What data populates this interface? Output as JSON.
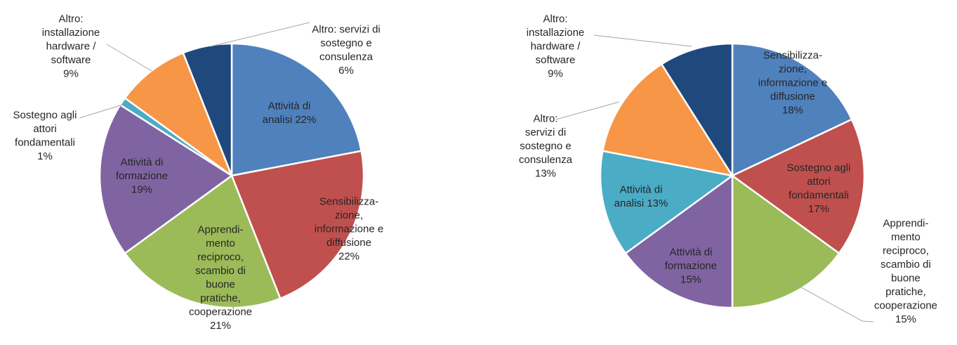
{
  "chart_data": [
    {
      "type": "pie",
      "title": "",
      "slices": [
        {
          "label": [
            "Attività di",
            "analisi 22%"
          ],
          "value": 22,
          "color": "#4F81BD"
        },
        {
          "label": [
            "Sensibilizza-",
            "zione,",
            "informazione e",
            "diffusione",
            "22%"
          ],
          "value": 22,
          "color": "#C0504D"
        },
        {
          "label": [
            "Apprendi-",
            "mento",
            "reciproco,",
            "scambio di",
            "buone",
            "pratiche,",
            "cooperazione",
            "21%"
          ],
          "value": 21,
          "color": "#9BBB59"
        },
        {
          "label": [
            "Attività di",
            "formazione",
            "19%"
          ],
          "value": 19,
          "color": "#8064A2"
        },
        {
          "label": [
            "Sostegno agli",
            "attori",
            "fondamentali",
            "1%"
          ],
          "value": 1,
          "color": "#4BACC6"
        },
        {
          "label": [
            "Altro:",
            "installazione",
            "hardware /",
            "software",
            "9%"
          ],
          "value": 9,
          "color": "#F79646"
        },
        {
          "label": [
            "Altro: servizi di",
            "sostegno e",
            "consulenza",
            "6%"
          ],
          "value": 6,
          "color": "#1F497D"
        }
      ]
    },
    {
      "type": "pie",
      "title": "",
      "slices": [
        {
          "label": [
            "Sensibilizza-",
            "zione,",
            "informazione e",
            "diffusione",
            "18%"
          ],
          "value": 18,
          "color": "#4F81BD"
        },
        {
          "label": [
            "Sostegno agli",
            "attori",
            "fondamentali",
            "17%"
          ],
          "value": 17,
          "color": "#C0504D"
        },
        {
          "label": [
            "Apprendi-",
            "mento",
            "reciproco,",
            "scambio di",
            "buone",
            "pratiche,",
            "cooperazione",
            "15%"
          ],
          "value": 15,
          "color": "#9BBB59"
        },
        {
          "label": [
            "Attività di",
            "formazione",
            "15%"
          ],
          "value": 15,
          "color": "#8064A2"
        },
        {
          "label": [
            "Attività di",
            "analisi 13%"
          ],
          "value": 13,
          "color": "#4BACC6"
        },
        {
          "label": [
            "Altro:",
            "servizi di",
            "sostegno e",
            "consulenza",
            "13%"
          ],
          "value": 13,
          "color": "#F79646"
        },
        {
          "label": [
            "Altro:",
            "installazione",
            "hardware /",
            "software",
            "9%"
          ],
          "value": 9,
          "color": "#1F497D"
        }
      ]
    }
  ]
}
